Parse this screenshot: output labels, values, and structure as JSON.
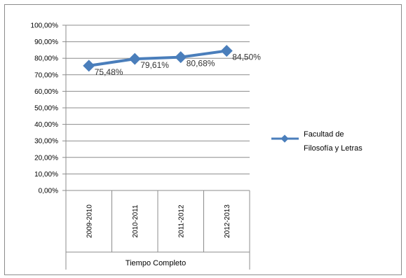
{
  "chart_data": {
    "type": "line",
    "categories": [
      "2009-2010",
      "2010-2011",
      "2011-2012",
      "2012-2013"
    ],
    "category_group": "Tiempo Completo",
    "series": [
      {
        "name": "Facultad de Filosofía y Letras",
        "values": [
          75.48,
          79.61,
          80.68,
          84.5
        ],
        "labels": [
          "75,48%",
          "79,61%",
          "80,68%",
          "84,50%"
        ]
      }
    ],
    "ylim": [
      0,
      100
    ],
    "yticks": [
      "0,00%",
      "10,00%",
      "20,00%",
      "30,00%",
      "40,00%",
      "50,00%",
      "60,00%",
      "70,00%",
      "80,00%",
      "90,00%",
      "100,00%"
    ],
    "grid": true,
    "legend_position": "right",
    "colors": {
      "series": "#4a7ebb",
      "grid": "#8c8c8c",
      "axis": "#8c8c8c"
    }
  },
  "legend": {
    "line1": "Facultad de",
    "line2": "Filosofía y Letras"
  }
}
